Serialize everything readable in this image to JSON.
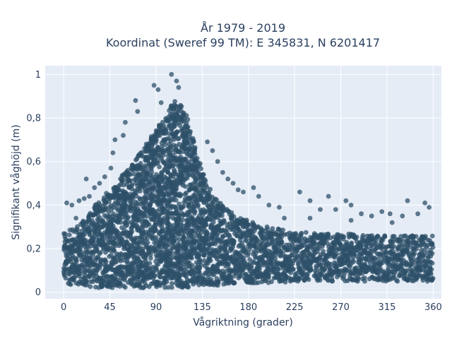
{
  "chart_data": {
    "type": "scatter",
    "title_line1": "År 1979 - 2019",
    "title_line2": "Koordinat (Sweref 99 TM): E 345831, N 6201417",
    "xlabel": "Vågriktning (grader)",
    "ylabel": "Signifikant våghöjd (m)",
    "xlim": [
      -18,
      368
    ],
    "ylim": [
      -0.03,
      1.04
    ],
    "x_ticks": [
      0,
      45,
      90,
      135,
      180,
      225,
      270,
      315,
      360
    ],
    "x_tick_labels": [
      "0",
      "45",
      "90",
      "135",
      "180",
      "225",
      "270",
      "315",
      "360"
    ],
    "y_ticks": [
      0,
      0.2,
      0.4,
      0.6,
      0.8,
      1
    ],
    "y_tick_labels": [
      "0",
      "0,2",
      "0,4",
      "0,6",
      "0,8",
      "1"
    ],
    "marker_color": "#2e5068",
    "plot_bg": "#e5ecf6",
    "grid": true,
    "envelope": {
      "x": [
        0,
        10,
        20,
        30,
        45,
        60,
        70,
        80,
        90,
        100,
        108,
        115,
        120,
        125,
        130,
        140,
        150,
        160,
        170,
        180,
        200,
        225,
        250,
        270,
        300,
        330,
        360
      ],
      "y_max": [
        0.27,
        0.3,
        0.33,
        0.4,
        0.47,
        0.55,
        0.62,
        0.68,
        0.75,
        0.82,
        0.88,
        0.86,
        0.8,
        0.74,
        0.64,
        0.5,
        0.42,
        0.38,
        0.35,
        0.33,
        0.3,
        0.28,
        0.27,
        0.27,
        0.26,
        0.26,
        0.26
      ],
      "y_min": [
        0.04,
        0.03,
        0.03,
        0.02,
        0.02,
        0.02,
        0.02,
        0.02,
        0.02,
        0.02,
        0.02,
        0.02,
        0.02,
        0.03,
        0.03,
        0.03,
        0.03,
        0.04,
        0.04,
        0.04,
        0.04,
        0.05,
        0.05,
        0.05,
        0.05,
        0.05,
        0.05
      ]
    },
    "outliers": [
      {
        "x": 105,
        "y": 1.0
      },
      {
        "x": 110,
        "y": 0.97
      },
      {
        "x": 88,
        "y": 0.95
      },
      {
        "x": 92,
        "y": 0.93
      },
      {
        "x": 112,
        "y": 0.94
      },
      {
        "x": 70,
        "y": 0.88
      },
      {
        "x": 72,
        "y": 0.83
      },
      {
        "x": 95,
        "y": 0.87
      },
      {
        "x": 60,
        "y": 0.78
      },
      {
        "x": 58,
        "y": 0.72
      },
      {
        "x": 50,
        "y": 0.7
      },
      {
        "x": 48,
        "y": 0.64
      },
      {
        "x": 46,
        "y": 0.57
      },
      {
        "x": 40,
        "y": 0.53
      },
      {
        "x": 35,
        "y": 0.5
      },
      {
        "x": 30,
        "y": 0.48
      },
      {
        "x": 25,
        "y": 0.44
      },
      {
        "x": 20,
        "y": 0.43
      },
      {
        "x": 15,
        "y": 0.42
      },
      {
        "x": 8,
        "y": 0.4
      },
      {
        "x": 3,
        "y": 0.41
      },
      {
        "x": 12,
        "y": 0.34
      },
      {
        "x": 22,
        "y": 0.52
      },
      {
        "x": 140,
        "y": 0.69
      },
      {
        "x": 145,
        "y": 0.65
      },
      {
        "x": 150,
        "y": 0.6
      },
      {
        "x": 155,
        "y": 0.55
      },
      {
        "x": 160,
        "y": 0.52
      },
      {
        "x": 165,
        "y": 0.5
      },
      {
        "x": 170,
        "y": 0.47
      },
      {
        "x": 175,
        "y": 0.46
      },
      {
        "x": 185,
        "y": 0.48
      },
      {
        "x": 190,
        "y": 0.44
      },
      {
        "x": 200,
        "y": 0.4
      },
      {
        "x": 210,
        "y": 0.39
      },
      {
        "x": 230,
        "y": 0.46
      },
      {
        "x": 240,
        "y": 0.42
      },
      {
        "x": 250,
        "y": 0.38
      },
      {
        "x": 258,
        "y": 0.44
      },
      {
        "x": 265,
        "y": 0.38
      },
      {
        "x": 275,
        "y": 0.42
      },
      {
        "x": 280,
        "y": 0.4
      },
      {
        "x": 290,
        "y": 0.36
      },
      {
        "x": 300,
        "y": 0.35
      },
      {
        "x": 310,
        "y": 0.37
      },
      {
        "x": 318,
        "y": 0.36
      },
      {
        "x": 330,
        "y": 0.35
      },
      {
        "x": 335,
        "y": 0.42
      },
      {
        "x": 345,
        "y": 0.36
      },
      {
        "x": 352,
        "y": 0.41
      },
      {
        "x": 356,
        "y": 0.39
      },
      {
        "x": 280,
        "y": 0.33
      },
      {
        "x": 215,
        "y": 0.34
      },
      {
        "x": 240,
        "y": 0.34
      },
      {
        "x": 320,
        "y": 0.32
      }
    ]
  }
}
